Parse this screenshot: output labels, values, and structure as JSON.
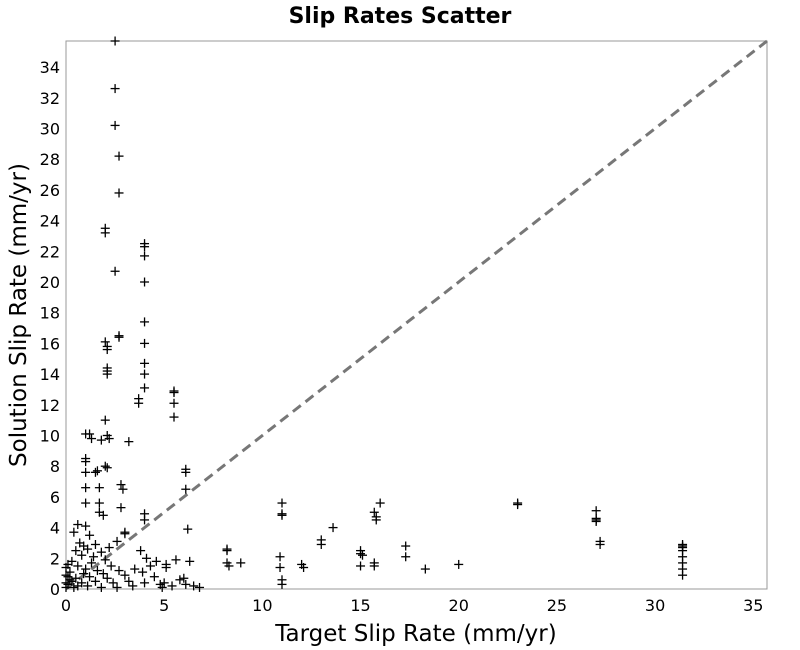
{
  "chart_data": {
    "type": "scatter",
    "title": "Slip Rates Scatter",
    "xlabel": "Target Slip Rate (mm/yr)",
    "ylabel": "Solution Slip Rate (mm/yr)",
    "xlim": [
      0,
      35.7
    ],
    "ylim": [
      0,
      35.7
    ],
    "x_ticks": [
      0,
      5,
      10,
      15,
      20,
      25,
      30,
      35
    ],
    "y_ticks": [
      0,
      2,
      4,
      6,
      8,
      10,
      12,
      14,
      16,
      18,
      20,
      22,
      24,
      26,
      28,
      30,
      32,
      34
    ],
    "grid": true,
    "marker": "+",
    "marker_color": "#000000",
    "reference_line": {
      "style": "dashed",
      "color": "#777777",
      "from": [
        0,
        0
      ],
      "to": [
        35.7,
        35.7
      ]
    },
    "points": [
      [
        2.5,
        35.7
      ],
      [
        2.5,
        32.6
      ],
      [
        2.5,
        30.2
      ],
      [
        2.7,
        28.2
      ],
      [
        2.7,
        25.8
      ],
      [
        2.5,
        20.7
      ],
      [
        2.7,
        16.5
      ],
      [
        2.7,
        16.4
      ],
      [
        2.0,
        23.5
      ],
      [
        2.0,
        23.2
      ],
      [
        2.0,
        16.1
      ],
      [
        2.1,
        15.8
      ],
      [
        2.1,
        15.6
      ],
      [
        2.1,
        14.4
      ],
      [
        2.1,
        14.2
      ],
      [
        2.1,
        14.0
      ],
      [
        2.0,
        11.0
      ],
      [
        2.1,
        10.0
      ],
      [
        2.2,
        9.8
      ],
      [
        1.8,
        9.7
      ],
      [
        2.0,
        8.0
      ],
      [
        2.1,
        7.9
      ],
      [
        4.0,
        22.5
      ],
      [
        4.0,
        22.3
      ],
      [
        4.0,
        21.7
      ],
      [
        4.0,
        20.0
      ],
      [
        4.0,
        17.4
      ],
      [
        4.0,
        16.0
      ],
      [
        4.0,
        14.7
      ],
      [
        4.0,
        14.0
      ],
      [
        4.0,
        13.1
      ],
      [
        3.7,
        12.4
      ],
      [
        3.7,
        12.1
      ],
      [
        3.2,
        9.6
      ],
      [
        4.0,
        4.9
      ],
      [
        4.0,
        4.5
      ],
      [
        5.5,
        12.9
      ],
      [
        5.5,
        12.8
      ],
      [
        5.5,
        12.1
      ],
      [
        5.5,
        11.2
      ],
      [
        6.1,
        7.8
      ],
      [
        6.1,
        7.6
      ],
      [
        6.1,
        6.5
      ],
      [
        6.2,
        3.9
      ],
      [
        1.0,
        10.1
      ],
      [
        1.2,
        10.1
      ],
      [
        1.3,
        9.8
      ],
      [
        1.0,
        8.5
      ],
      [
        1.0,
        8.3
      ],
      [
        1.0,
        7.6
      ],
      [
        1.5,
        7.6
      ],
      [
        1.6,
        7.7
      ],
      [
        1.0,
        6.6
      ],
      [
        1.7,
        6.6
      ],
      [
        1.0,
        5.6
      ],
      [
        1.7,
        5.6
      ],
      [
        1.7,
        5.0
      ],
      [
        1.9,
        4.8
      ],
      [
        2.8,
        6.8
      ],
      [
        2.9,
        6.5
      ],
      [
        2.8,
        5.3
      ],
      [
        3.0,
        3.7
      ],
      [
        3.0,
        3.6
      ],
      [
        2.6,
        3.1
      ],
      [
        1.0,
        4.1
      ],
      [
        0.6,
        4.2
      ],
      [
        0.4,
        3.7
      ],
      [
        1.2,
        3.5
      ],
      [
        0.7,
        3.0
      ],
      [
        0.9,
        2.8
      ],
      [
        1.5,
        2.9
      ],
      [
        0.5,
        2.5
      ],
      [
        1.1,
        2.6
      ],
      [
        1.8,
        2.4
      ],
      [
        2.2,
        2.7
      ],
      [
        0.8,
        2.2
      ],
      [
        1.4,
        2.1
      ],
      [
        0.3,
        1.8
      ],
      [
        1.3,
        1.7
      ],
      [
        2.0,
        1.9
      ],
      [
        0.6,
        1.5
      ],
      [
        1.0,
        1.3
      ],
      [
        1.6,
        1.2
      ],
      [
        2.3,
        1.5
      ],
      [
        0.2,
        1.1
      ],
      [
        0.9,
        1.0
      ],
      [
        1.9,
        1.0
      ],
      [
        2.7,
        1.2
      ],
      [
        0.1,
        0.8
      ],
      [
        0.5,
        0.7
      ],
      [
        1.2,
        0.8
      ],
      [
        2.1,
        0.7
      ],
      [
        3.0,
        0.9
      ],
      [
        3.5,
        1.3
      ],
      [
        0.3,
        0.5
      ],
      [
        0.8,
        0.4
      ],
      [
        1.5,
        0.5
      ],
      [
        2.4,
        0.4
      ],
      [
        3.2,
        0.5
      ],
      [
        0.1,
        0.3
      ],
      [
        0.6,
        0.2
      ],
      [
        1.1,
        0.2
      ],
      [
        1.8,
        0.1
      ],
      [
        2.6,
        0.1
      ],
      [
        3.4,
        0.2
      ],
      [
        0.0,
        0.1
      ],
      [
        0.4,
        0.1
      ],
      [
        0.2,
        0.6
      ],
      [
        0.0,
        0.9
      ],
      [
        0.0,
        1.4
      ],
      [
        0.1,
        1.6
      ],
      [
        0.0,
        0.4
      ],
      [
        3.8,
        2.5
      ],
      [
        4.1,
        2.0
      ],
      [
        4.3,
        1.5
      ],
      [
        3.9,
        1.1
      ],
      [
        4.5,
        0.8
      ],
      [
        4.0,
        0.4
      ],
      [
        4.6,
        1.8
      ],
      [
        4.8,
        0.3
      ],
      [
        5.1,
        1.6
      ],
      [
        5.1,
        1.4
      ],
      [
        5.6,
        1.9
      ],
      [
        5.8,
        0.6
      ],
      [
        6.0,
        0.7
      ],
      [
        6.1,
        0.3
      ],
      [
        6.3,
        1.8
      ],
      [
        6.5,
        0.2
      ],
      [
        6.8,
        0.1
      ],
      [
        5.0,
        0.4
      ],
      [
        4.9,
        0.1
      ],
      [
        5.4,
        0.2
      ],
      [
        8.2,
        2.6
      ],
      [
        8.2,
        2.5
      ],
      [
        8.2,
        1.7
      ],
      [
        8.3,
        1.5
      ],
      [
        8.9,
        1.7
      ],
      [
        11.0,
        5.6
      ],
      [
        11.0,
        4.9
      ],
      [
        11.0,
        4.8
      ],
      [
        10.9,
        2.1
      ],
      [
        10.9,
        1.4
      ],
      [
        11.0,
        0.6
      ],
      [
        11.0,
        0.3
      ],
      [
        12.0,
        1.6
      ],
      [
        12.1,
        1.4
      ],
      [
        13.0,
        3.2
      ],
      [
        13.0,
        2.9
      ],
      [
        13.6,
        4.0
      ],
      [
        15.0,
        2.5
      ],
      [
        15.0,
        2.3
      ],
      [
        15.1,
        2.2
      ],
      [
        15.0,
        1.5
      ],
      [
        15.7,
        1.7
      ],
      [
        15.7,
        1.5
      ],
      [
        15.7,
        5.0
      ],
      [
        15.8,
        4.7
      ],
      [
        15.8,
        4.5
      ],
      [
        16.0,
        5.6
      ],
      [
        17.3,
        2.8
      ],
      [
        17.3,
        2.1
      ],
      [
        18.3,
        1.3
      ],
      [
        20.0,
        1.6
      ],
      [
        23.0,
        5.6
      ],
      [
        23.0,
        5.5
      ],
      [
        27.0,
        5.1
      ],
      [
        27.0,
        4.6
      ],
      [
        27.0,
        4.5
      ],
      [
        27.0,
        4.4
      ],
      [
        27.2,
        3.1
      ],
      [
        27.2,
        2.9
      ],
      [
        31.4,
        2.9
      ],
      [
        31.4,
        2.8
      ],
      [
        31.4,
        2.7
      ],
      [
        31.4,
        2.5
      ],
      [
        31.4,
        2.1
      ],
      [
        31.4,
        1.7
      ],
      [
        31.4,
        1.3
      ],
      [
        31.4,
        0.9
      ]
    ]
  }
}
